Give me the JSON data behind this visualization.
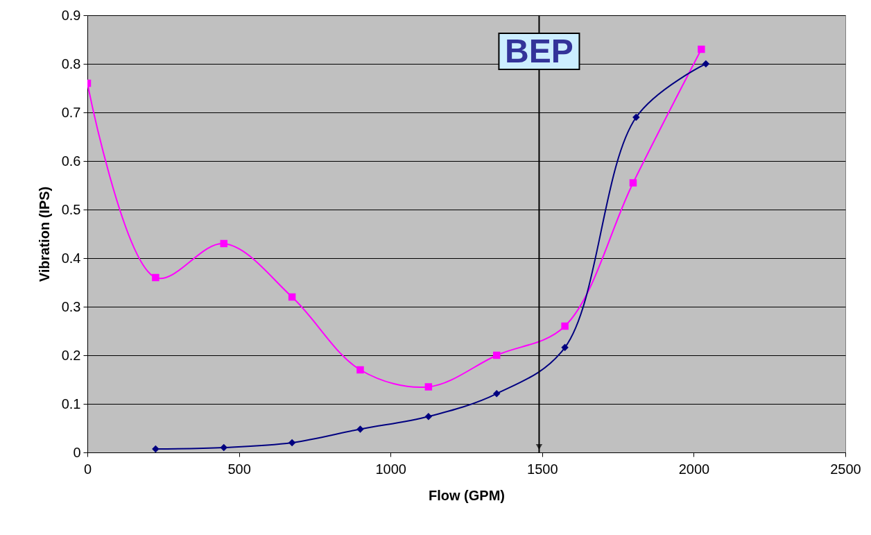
{
  "chart_data": {
    "type": "line",
    "xlabel": "Flow (GPM)",
    "ylabel": "Vibration (IPS)",
    "xlim": [
      0,
      2500
    ],
    "xticks": [
      0,
      500,
      1000,
      1500,
      2000,
      2500
    ],
    "ylim": [
      0,
      0.9
    ],
    "yticks": [
      0,
      0.1,
      0.2,
      0.3,
      0.4,
      0.5,
      0.6,
      0.7,
      0.8,
      0.9
    ],
    "grid": "y",
    "series": [
      {
        "color": "#ff00ff",
        "marker": "square",
        "x": [
          0,
          225,
          450,
          675,
          900,
          1125,
          1350,
          1575,
          1800,
          2025
        ],
        "values": [
          0.76,
          0.36,
          0.43,
          0.32,
          0.17,
          0.135,
          0.2,
          0.26,
          0.555,
          0.83
        ]
      },
      {
        "color": "#000080",
        "marker": "diamond",
        "x": [
          225,
          450,
          675,
          900,
          1125,
          1350,
          1575,
          1810,
          2040
        ],
        "values": [
          0.007,
          0.01,
          0.02,
          0.048,
          0.074,
          0.121,
          0.216,
          0.69,
          0.8
        ]
      }
    ],
    "ref_lines": [
      {
        "axis": "x",
        "value": 1490,
        "label": "BEP",
        "color": "#000000"
      }
    ]
  }
}
